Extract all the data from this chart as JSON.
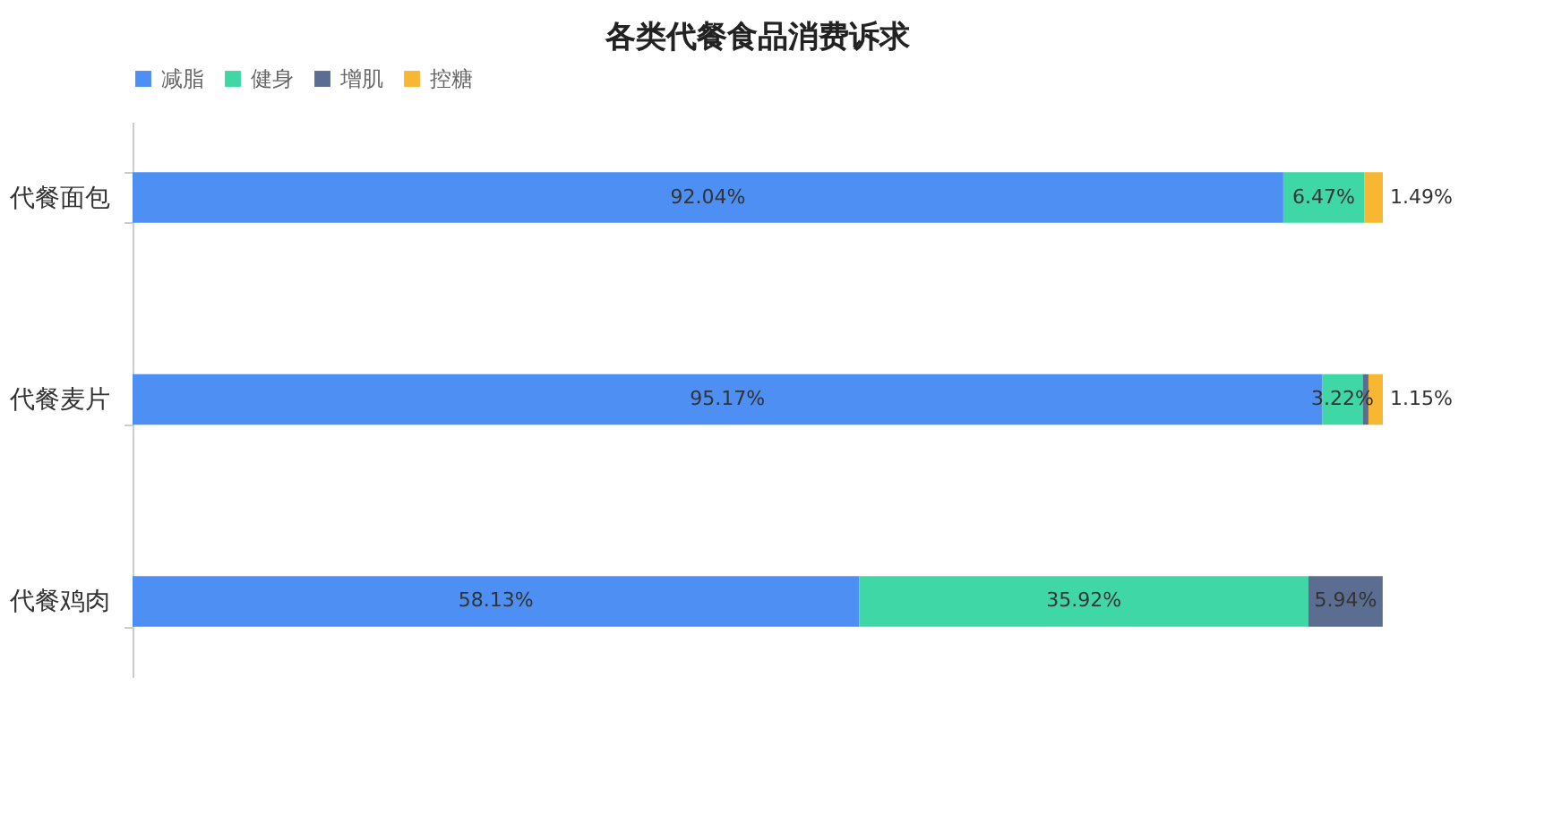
{
  "chart_data": {
    "type": "bar",
    "orientation": "horizontal",
    "stacked": true,
    "title": "各类代餐食品消费诉求",
    "categories": [
      "代餐面包",
      "代餐麦片",
      "代餐鸡肉"
    ],
    "xlim": [
      0,
      100
    ],
    "tick_labels": "y",
    "legend": "top",
    "grid": false,
    "series": [
      {
        "name": "减脂",
        "color": "#4e8ff3",
        "values": [
          92.04,
          95.17,
          58.13
        ],
        "value_labels": [
          "92.04%",
          "95.17%",
          "58.13%"
        ]
      },
      {
        "name": "健身",
        "color": "#40d7a7",
        "values": [
          6.47,
          3.22,
          35.92
        ],
        "value_labels": [
          "6.47%",
          "3.22%",
          "35.92%"
        ]
      },
      {
        "name": "增肌",
        "color": "#5b6e91",
        "values": [
          null,
          0.46,
          5.94
        ],
        "value_labels": [
          null,
          null,
          "5.94%"
        ]
      },
      {
        "name": "控糖",
        "color": "#f8b733",
        "values": [
          1.49,
          1.15,
          null
        ],
        "value_labels": [
          "1.49%",
          "1.15%",
          null
        ]
      }
    ]
  }
}
